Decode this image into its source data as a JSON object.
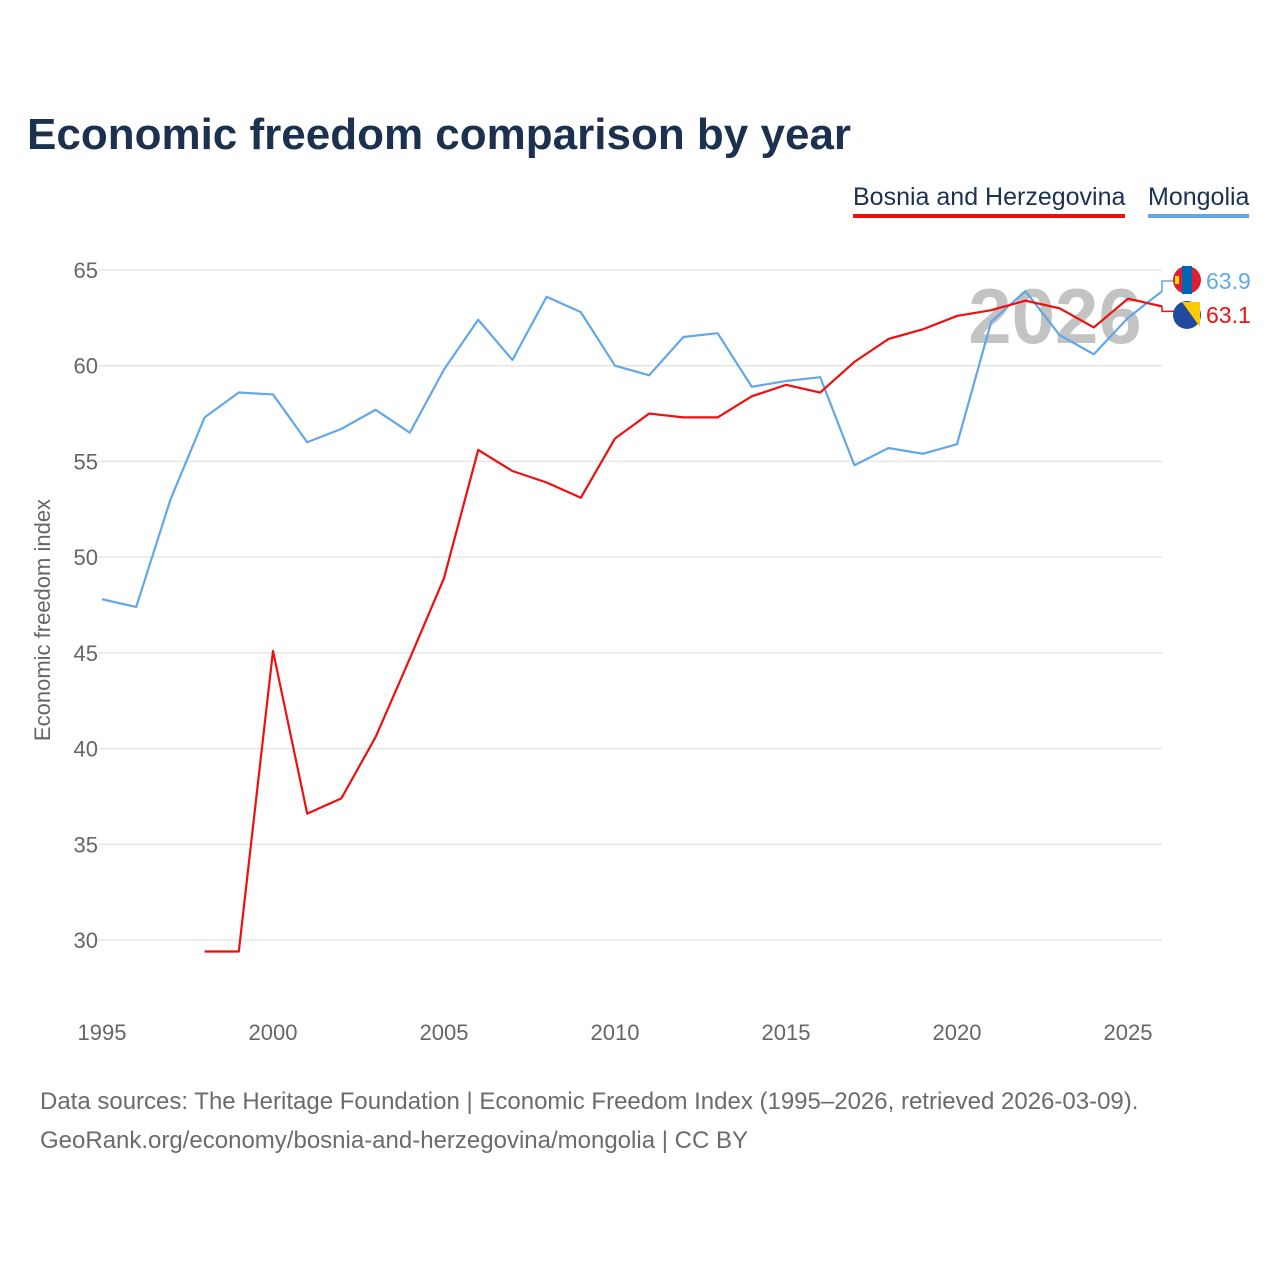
{
  "title": "Economic freedom comparison by year",
  "legend": [
    "Bosnia and Herzegovina",
    "Mongolia"
  ],
  "watermark_year": "2026",
  "end_labels": {
    "mongolia": "63.9",
    "bosnia": "63.1"
  },
  "footer": {
    "line1": "Data sources: The Heritage Foundation | Economic Freedom Index (1995–2026, retrieved 2026-03-09).",
    "line2": "GeoRank.org/economy/bosnia-and-herzegovina/mongolia | CC BY"
  },
  "chart_data": {
    "type": "line",
    "title": "Economic freedom comparison by year",
    "xlabel": "",
    "ylabel": "Economic freedom index",
    "xlim": [
      1995,
      2026
    ],
    "ylim": [
      27,
      65
    ],
    "xticks": [
      1995,
      2000,
      2005,
      2010,
      2015,
      2020,
      2025
    ],
    "yticks": [
      30,
      35,
      40,
      45,
      50,
      55,
      60,
      65
    ],
    "grid": true,
    "legend_position": "top-right",
    "series": [
      {
        "name": "Bosnia and Herzegovina",
        "color": "#ee0f0f",
        "x": [
          1998,
          1999,
          2000,
          2001,
          2002,
          2003,
          2004,
          2005,
          2006,
          2007,
          2008,
          2009,
          2010,
          2011,
          2012,
          2013,
          2014,
          2015,
          2016,
          2017,
          2018,
          2019,
          2020,
          2021,
          2022,
          2023,
          2024,
          2025,
          2026
        ],
        "values": [
          29.4,
          29.4,
          45.1,
          36.6,
          37.4,
          40.6,
          44.7,
          48.9,
          55.6,
          54.5,
          53.9,
          53.1,
          56.2,
          57.5,
          57.3,
          57.3,
          58.4,
          59.0,
          58.6,
          60.2,
          61.4,
          61.9,
          62.6,
          62.9,
          63.4,
          63.0,
          62.0,
          63.5,
          63.1
        ]
      },
      {
        "name": "Mongolia",
        "color": "#62a8e8",
        "x": [
          1995,
          1996,
          1997,
          1998,
          1999,
          2000,
          2001,
          2002,
          2003,
          2004,
          2005,
          2006,
          2007,
          2008,
          2009,
          2010,
          2011,
          2012,
          2013,
          2014,
          2015,
          2016,
          2017,
          2018,
          2019,
          2020,
          2021,
          2022,
          2023,
          2024,
          2025,
          2026
        ],
        "values": [
          47.8,
          47.4,
          53.0,
          57.3,
          58.6,
          58.5,
          56.0,
          56.7,
          57.7,
          56.5,
          59.8,
          62.4,
          60.3,
          63.6,
          62.8,
          60.0,
          59.5,
          61.5,
          61.7,
          58.9,
          59.2,
          59.4,
          54.8,
          55.7,
          55.4,
          55.9,
          62.3,
          63.9,
          61.6,
          60.6,
          62.5,
          63.9
        ]
      }
    ]
  }
}
